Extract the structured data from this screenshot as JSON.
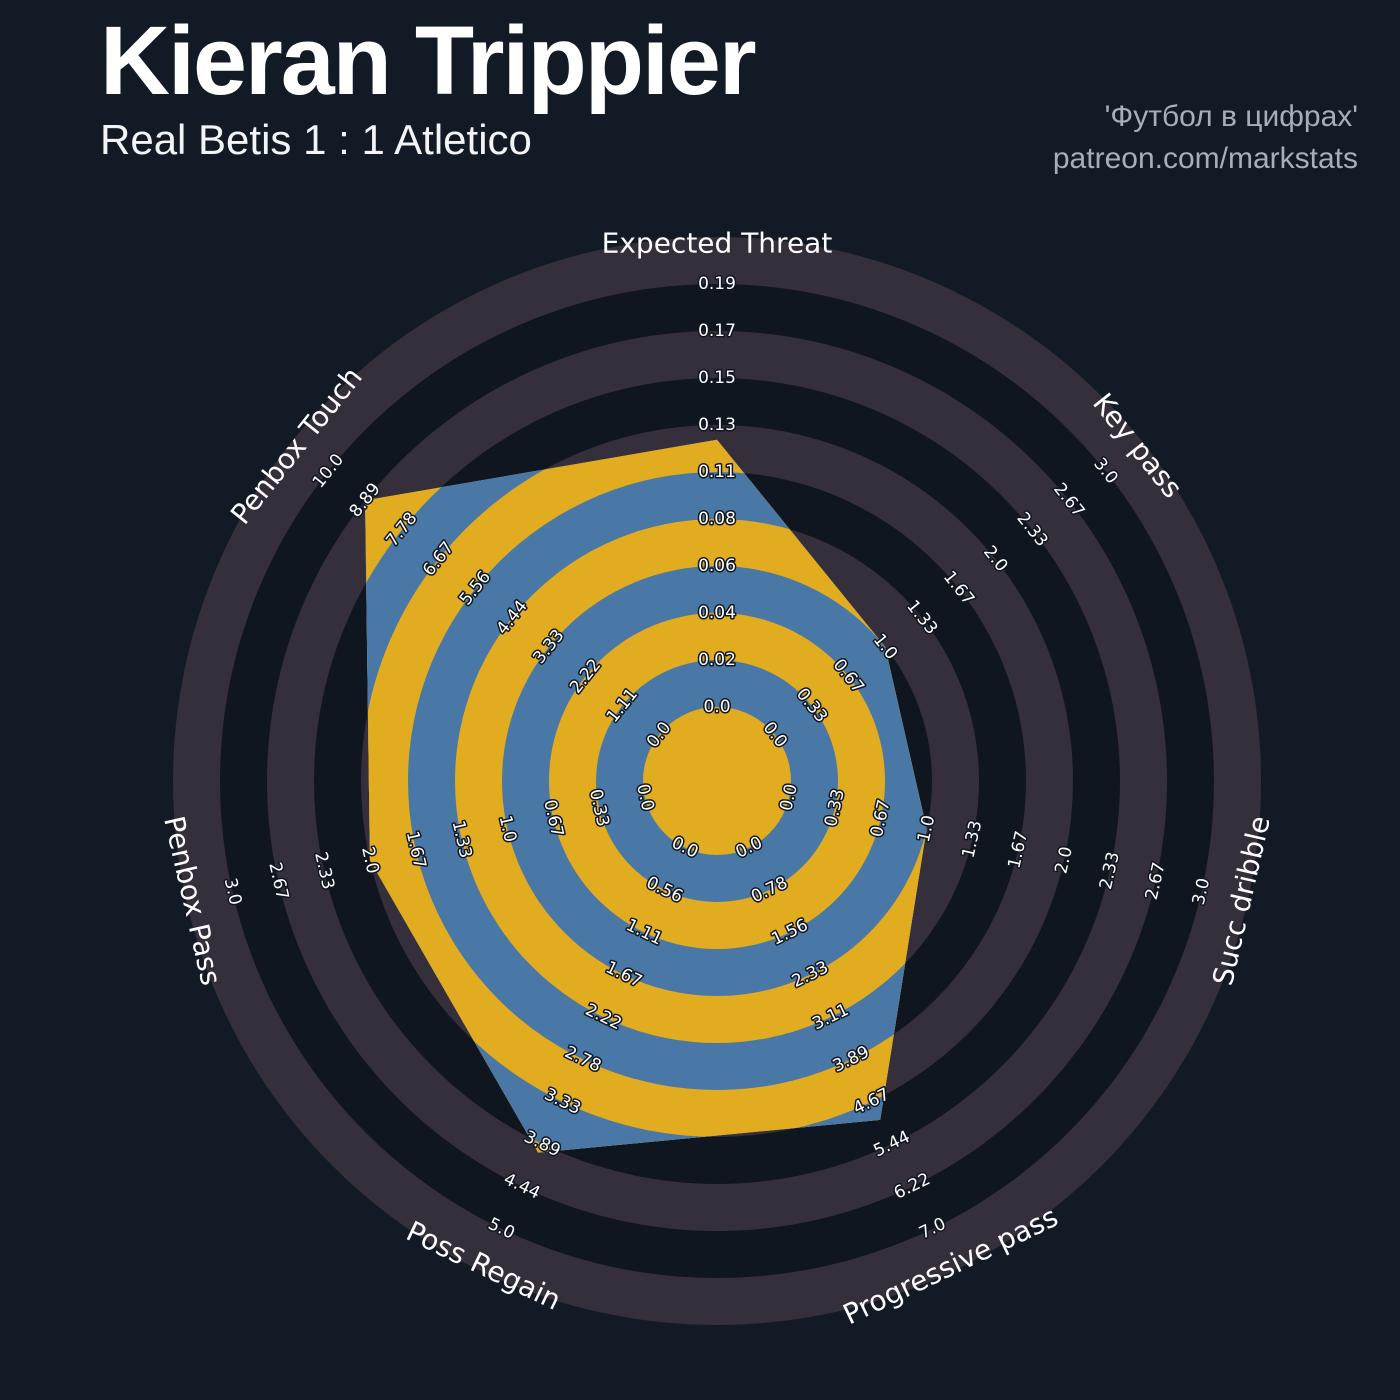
{
  "header": {
    "title": "Kieran Trippier",
    "subtitle": "Real Betis 1 : 1 Atletico",
    "watermark_line1": "'Футбол в цифрах'",
    "watermark_line2": "patreon.com/markstats"
  },
  "colors": {
    "background": "#121a26",
    "ring_dark": "#10161f",
    "ring_light": "#352f3b",
    "radar_fill_blue": "#4a78a6",
    "radar_ring_gold": "#e2ac21",
    "text": "#ffffff",
    "watermark": "#a9aeb6"
  },
  "chart_data": {
    "type": "radar",
    "title": "Kieran Trippier",
    "subtitle": "Real Betis 1 : 1 Atletico",
    "num_params": 7,
    "start_angle": "top",
    "direction": "clockwise",
    "num_rings": 9,
    "grid": "concentric-rings",
    "legend_position": "none",
    "params": [
      "Expected Threat",
      "Key pass",
      "Succ dribble",
      "Progressive pass",
      "Poss Regain",
      "Penbox Pass",
      "Penbox Touch"
    ],
    "values": [
      0.12,
      1.0,
      1.0,
      5.0,
      4.0,
      2.0,
      8.89
    ],
    "ranges": [
      [
        0,
        0.19
      ],
      [
        0,
        3.0
      ],
      [
        0,
        3.0
      ],
      [
        0,
        7.0
      ],
      [
        0,
        5.0
      ],
      [
        0,
        3.0
      ],
      [
        0,
        10.0
      ]
    ],
    "tick_labels": [
      [
        "0.0",
        "0.02",
        "0.04",
        "0.06",
        "0.08",
        "0.11",
        "0.13",
        "0.15",
        "0.17",
        "0.19"
      ],
      [
        "0.0",
        "0.33",
        "0.67",
        "1.0",
        "1.33",
        "1.67",
        "2.0",
        "2.33",
        "2.67",
        "3.0"
      ],
      [
        "0.0",
        "0.33",
        "0.67",
        "1.0",
        "1.33",
        "1.67",
        "2.0",
        "2.33",
        "2.67",
        "3.0"
      ],
      [
        "0.0",
        "0.78",
        "1.56",
        "2.33",
        "3.11",
        "3.89",
        "4.67",
        "5.44",
        "6.22",
        "7.0"
      ],
      [
        "0.0",
        "0.56",
        "1.11",
        "1.67",
        "2.22",
        "2.78",
        "3.33",
        "3.89",
        "4.44",
        "5.0"
      ],
      [
        "0.0",
        "0.33",
        "0.67",
        "1.0",
        "1.33",
        "1.67",
        "2.0",
        "2.33",
        "2.67",
        "3.0"
      ],
      [
        "0.0",
        "1.11",
        "2.22",
        "3.33",
        "4.44",
        "5.56",
        "6.67",
        "7.78",
        "8.89",
        "10.0"
      ]
    ]
  }
}
